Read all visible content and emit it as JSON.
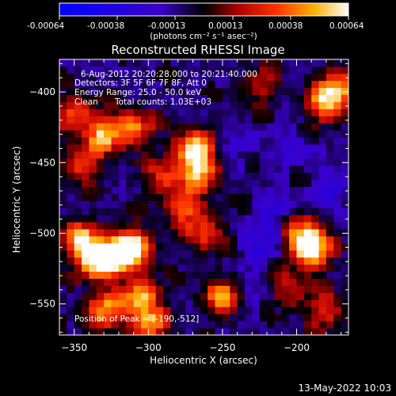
{
  "colorbar": {
    "tick_labels": [
      "-0.00064",
      "-0.00038",
      "-0.00013",
      "0.00013",
      "0.00038",
      "0.00064"
    ],
    "unit_label": "(photons cm⁻² s⁻¹ asec⁻²)",
    "range": [
      -0.00064,
      0.00064
    ]
  },
  "chart_data": {
    "type": "heatmap",
    "title": "Reconstructed RHESSI Image",
    "xlabel": "Heliocentric X (arcsec)",
    "ylabel": "Heliocentric Y (arcsec)",
    "xlim": [
      -360,
      -165
    ],
    "ylim": [
      -572,
      -377
    ],
    "x_ticks": [
      -350,
      -300,
      -250,
      -200
    ],
    "y_ticks": [
      -550,
      -500,
      -450,
      -400
    ],
    "peak_position": [
      -190,
      -512
    ],
    "hotspots": [
      {
        "x": -335,
        "y": -520,
        "value": 0.0006
      },
      {
        "x": -320,
        "y": -515,
        "value": 0.0006
      },
      {
        "x": -310,
        "y": -510,
        "value": 0.00055
      },
      {
        "x": -345,
        "y": -505,
        "value": 0.0005
      },
      {
        "x": -305,
        "y": -545,
        "value": 0.0005
      },
      {
        "x": -330,
        "y": -555,
        "value": 0.00045
      },
      {
        "x": -300,
        "y": -565,
        "value": 0.0004
      },
      {
        "x": -190,
        "y": -512,
        "value": 0.00064
      },
      {
        "x": -195,
        "y": -500,
        "value": 0.0004
      },
      {
        "x": -270,
        "y": -440,
        "value": 0.0005
      },
      {
        "x": -265,
        "y": -455,
        "value": 0.00045
      },
      {
        "x": -275,
        "y": -480,
        "value": 0.00035
      },
      {
        "x": -262,
        "y": -500,
        "value": 0.0003
      },
      {
        "x": -250,
        "y": -545,
        "value": 0.0004
      },
      {
        "x": -330,
        "y": -430,
        "value": 0.00045
      },
      {
        "x": -310,
        "y": -425,
        "value": 0.0004
      },
      {
        "x": -345,
        "y": -450,
        "value": 0.0003
      },
      {
        "x": -350,
        "y": -415,
        "value": 0.0003
      },
      {
        "x": -180,
        "y": -408,
        "value": 0.0005
      },
      {
        "x": -170,
        "y": -395,
        "value": 0.00035
      },
      {
        "x": -225,
        "y": -395,
        "value": 0.00015
      },
      {
        "x": -205,
        "y": -540,
        "value": 0.0002
      },
      {
        "x": -180,
        "y": -555,
        "value": 0.00025
      },
      {
        "x": -290,
        "y": -460,
        "value": 0.00025
      }
    ],
    "coldspots": [
      {
        "x": -225,
        "y": -510,
        "value": -0.0002
      },
      {
        "x": -215,
        "y": -485,
        "value": -0.00018
      },
      {
        "x": -175,
        "y": -470,
        "value": -0.0002
      },
      {
        "x": -240,
        "y": -440,
        "value": -0.00012
      },
      {
        "x": -200,
        "y": -440,
        "value": -0.00015
      },
      {
        "x": -230,
        "y": -545,
        "value": -0.0001
      }
    ],
    "annotations": [
      "6-Aug-2012 20:20:28.000 to 20:21:40.000",
      "Detectors: 3F 5F 6F 7F 8F, Att 0",
      "Energy Range: 25.0 - 50.0 keV",
      "Clean",
      "Total counts: 1.03E+03",
      "Position of Peak = [-190,-512]"
    ]
  },
  "footer_date": "13-May-2022 10:03"
}
